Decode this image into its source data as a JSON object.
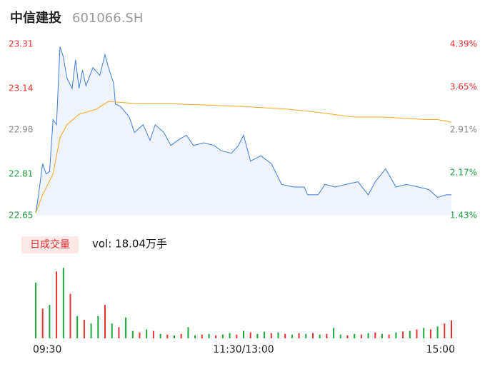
{
  "chart_data": {
    "type": "line",
    "title": "中信建投",
    "subtitle": "601066.SH",
    "xlim": [
      0,
      240
    ],
    "xticks": [
      {
        "value": 0,
        "label": "09:30"
      },
      {
        "value": 120,
        "label": "11:30/13:00"
      },
      {
        "value": 240,
        "label": "15:00"
      }
    ],
    "ylim": [
      22.65,
      23.31
    ],
    "yticks": [
      22.65,
      22.81,
      22.98,
      23.14,
      23.31
    ],
    "ytick_colors": [
      "#1a9e3f",
      "#1a9e3f",
      "#888888",
      "#e8312f",
      "#e8312f"
    ],
    "y2lim": [
      1.43,
      4.39
    ],
    "y2ticks": [
      {
        "value": 1.43,
        "label": "1.43%"
      },
      {
        "value": 2.17,
        "label": "2.17%"
      },
      {
        "value": 2.91,
        "label": "2.91%"
      },
      {
        "value": 3.65,
        "label": "3.65%"
      },
      {
        "value": 4.39,
        "label": "4.39%"
      }
    ],
    "y2tick_colors": [
      "#1a9e3f",
      "#1a9e3f",
      "#888888",
      "#e8312f",
      "#e8312f"
    ],
    "area_color": "#eef3fc",
    "series": [
      {
        "color": "#3b7ddd",
        "x": [
          0,
          1,
          4,
          6,
          8,
          10,
          12,
          14,
          16,
          18,
          21,
          23,
          25,
          27,
          29,
          33,
          37,
          40,
          42,
          45,
          46,
          49,
          54,
          57,
          62,
          66,
          69,
          74,
          78,
          82,
          87,
          91,
          97,
          103,
          107,
          113,
          117,
          120,
          124,
          130,
          136,
          142,
          149,
          155,
          157,
          163,
          167,
          173,
          179,
          186,
          192,
          196,
          202,
          208,
          214,
          221,
          227,
          232,
          237,
          240
        ],
        "values": [
          22.66,
          22.7,
          22.85,
          22.81,
          22.82,
          23.02,
          23.0,
          23.3,
          23.26,
          23.18,
          23.14,
          23.25,
          23.14,
          23.21,
          23.15,
          23.22,
          23.19,
          23.27,
          23.22,
          23.16,
          23.08,
          23.07,
          23.03,
          22.97,
          23.0,
          22.94,
          23.0,
          22.97,
          22.92,
          22.94,
          22.96,
          22.92,
          22.93,
          22.92,
          22.9,
          22.89,
          22.92,
          22.96,
          22.86,
          22.88,
          22.85,
          22.77,
          22.76,
          22.76,
          22.73,
          22.73,
          22.77,
          22.76,
          22.77,
          22.78,
          22.73,
          22.78,
          22.83,
          22.76,
          22.77,
          22.76,
          22.75,
          22.72,
          22.73,
          22.73
        ]
      },
      {
        "color": "#f5a623",
        "x": [
          0,
          4,
          10,
          14,
          18,
          25,
          35,
          42,
          60,
          82,
          120,
          145,
          160,
          183,
          200,
          225,
          232,
          240
        ],
        "values": [
          22.66,
          22.73,
          22.81,
          22.95,
          23.0,
          23.04,
          23.06,
          23.09,
          23.08,
          23.08,
          23.07,
          23.06,
          23.05,
          23.03,
          23.03,
          23.02,
          23.02,
          23.01
        ]
      }
    ],
    "volume": {
      "type": "bar",
      "label": "日成交量",
      "text": "vol: 18.04万手",
      "ylim": [
        0,
        100
      ],
      "label_bg": "#fde8e8",
      "label_color": "#e8312f",
      "x": [
        0,
        4,
        8,
        12,
        16,
        20,
        24,
        28,
        32,
        36,
        40,
        44,
        48,
        52,
        56,
        60,
        64,
        68,
        72,
        76,
        80,
        84,
        88,
        92,
        96,
        100,
        104,
        108,
        112,
        116,
        120,
        124,
        128,
        132,
        136,
        140,
        144,
        148,
        152,
        156,
        160,
        164,
        168,
        172,
        176,
        180,
        184,
        188,
        192,
        196,
        200,
        204,
        208,
        212,
        216,
        220,
        224,
        228,
        232,
        236,
        240
      ],
      "values": [
        75,
        40,
        45,
        90,
        95,
        60,
        30,
        25,
        20,
        30,
        45,
        20,
        15,
        28,
        10,
        8,
        12,
        10,
        6,
        5,
        4,
        6,
        15,
        4,
        5,
        6,
        4,
        5,
        7,
        5,
        10,
        8,
        6,
        9,
        7,
        8,
        6,
        5,
        7,
        6,
        7,
        5,
        6,
        14,
        5,
        4,
        6,
        5,
        7,
        8,
        6,
        5,
        8,
        9,
        10,
        12,
        14,
        12,
        16,
        20,
        24
      ],
      "colors": [
        "#1ba83a",
        "#e8312f",
        "#1ba83a",
        "#e8312f",
        "#1ba83a",
        "#e8312f",
        "#1ba83a",
        "#e8312f",
        "#1ba83a",
        "#1ba83a",
        "#e8312f",
        "#1ba83a",
        "#e8312f",
        "#1ba83a",
        "#1ba83a",
        "#e8312f",
        "#1ba83a",
        "#e8312f",
        "#1ba83a",
        "#e8312f",
        "#1ba83a",
        "#e8312f",
        "#1ba83a",
        "#1ba83a",
        "#e8312f",
        "#1ba83a",
        "#e8312f",
        "#1ba83a",
        "#1ba83a",
        "#e8312f",
        "#1ba83a",
        "#e8312f",
        "#1ba83a",
        "#1ba83a",
        "#e8312f",
        "#1ba83a",
        "#e8312f",
        "#1ba83a",
        "#e8312f",
        "#1ba83a",
        "#e8312f",
        "#1ba83a",
        "#e8312f",
        "#1ba83a",
        "#1ba83a",
        "#e8312f",
        "#1ba83a",
        "#e8312f",
        "#1ba83a",
        "#e8312f",
        "#1ba83a",
        "#e8312f",
        "#1ba83a",
        "#e8312f",
        "#1ba83a",
        "#e8312f",
        "#1ba83a",
        "#e8312f",
        "#1ba83a",
        "#e8312f",
        "#e8312f"
      ]
    }
  }
}
